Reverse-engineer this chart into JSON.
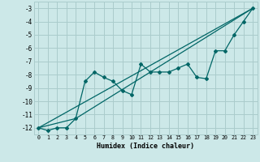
{
  "title": "",
  "xlabel": "Humidex (Indice chaleur)",
  "ylabel": "",
  "bg_color": "#cce8e8",
  "grid_color": "#aacccc",
  "line_color": "#006666",
  "xlim": [
    -0.5,
    23.5
  ],
  "ylim": [
    -12.5,
    -2.5
  ],
  "yticks": [
    -12,
    -11,
    -10,
    -9,
    -8,
    -7,
    -6,
    -5,
    -4,
    -3
  ],
  "xticks": [
    0,
    1,
    2,
    3,
    4,
    5,
    6,
    7,
    8,
    9,
    10,
    11,
    12,
    13,
    14,
    15,
    16,
    17,
    18,
    19,
    20,
    21,
    22,
    23
  ],
  "series1_x": [
    0,
    1,
    2,
    3,
    4,
    5,
    6,
    7,
    8,
    9,
    10,
    11,
    12,
    13,
    14,
    15,
    16,
    17,
    18,
    19,
    20,
    21,
    22,
    23
  ],
  "series1_y": [
    -12.0,
    -12.2,
    -12.0,
    -12.0,
    -11.3,
    -8.5,
    -7.8,
    -8.2,
    -8.5,
    -9.2,
    -9.5,
    -7.2,
    -7.8,
    -7.8,
    -7.8,
    -7.5,
    -7.2,
    -8.2,
    -8.3,
    -6.2,
    -6.2,
    -5.0,
    -4.0,
    -3.0
  ],
  "series2_x": [
    0,
    23
  ],
  "series2_y": [
    -12.0,
    -3.0
  ],
  "series3_x": [
    0,
    4,
    23
  ],
  "series3_y": [
    -12.0,
    -11.3,
    -3.0
  ]
}
